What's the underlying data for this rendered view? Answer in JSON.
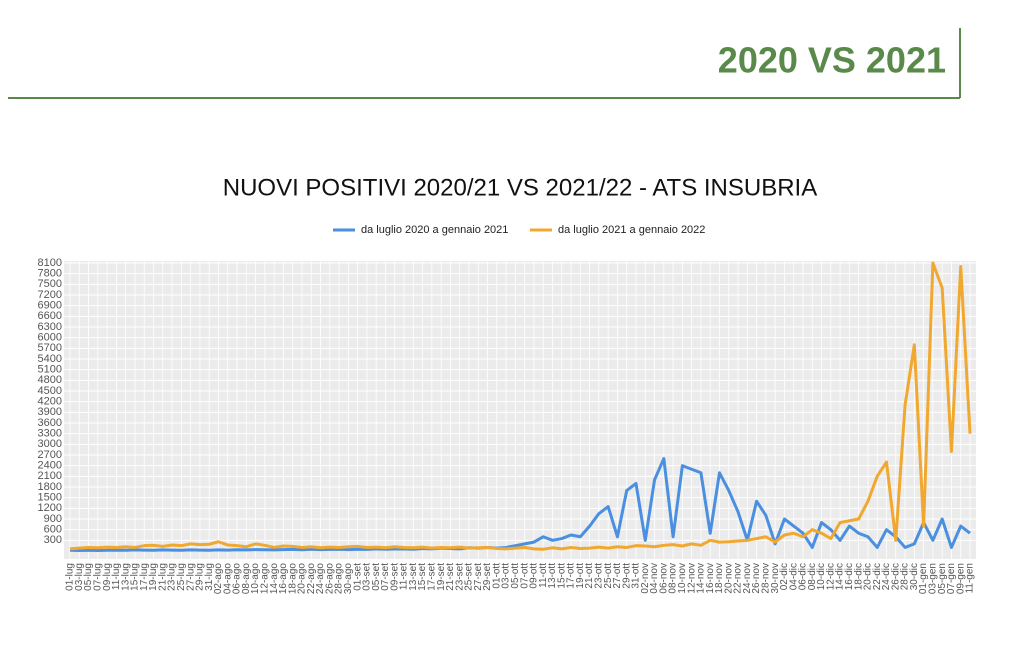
{
  "header": {
    "title": "2020 VS 2021"
  },
  "chart_data": {
    "type": "line",
    "title": "NUOVI POSITIVI 2020/21 VS 2021/22 - ATS INSUBRIA",
    "categories": [
      "01-lug",
      "03-lug",
      "05-lug",
      "07-lug",
      "09-lug",
      "11-lug",
      "13-lug",
      "15-lug",
      "17-lug",
      "19-lug",
      "21-lug",
      "23-lug",
      "25-lug",
      "27-lug",
      "29-lug",
      "31-lug",
      "02-ago",
      "04-ago",
      "06-ago",
      "08-ago",
      "10-ago",
      "12-ago",
      "14-ago",
      "16-ago",
      "18-ago",
      "20-ago",
      "22-ago",
      "24-ago",
      "26-ago",
      "28-ago",
      "30-ago",
      "01-set",
      "03-set",
      "05-set",
      "07-set",
      "09-set",
      "11-set",
      "13-set",
      "15-set",
      "17-set",
      "19-set",
      "21-set",
      "23-set",
      "25-set",
      "27-set",
      "29-set",
      "01-ott",
      "03-ott",
      "05-ott",
      "07-ott",
      "09-ott",
      "11-ott",
      "13-ott",
      "15-ott",
      "17-ott",
      "19-ott",
      "21-ott",
      "23-ott",
      "25-ott",
      "27-ott",
      "29-ott",
      "31-ott",
      "02-nov",
      "04-nov",
      "06-nov",
      "08-nov",
      "10-nov",
      "12-nov",
      "14-nov",
      "16-nov",
      "18-nov",
      "20-nov",
      "22-nov",
      "24-nov",
      "26-nov",
      "28-nov",
      "30-nov",
      "02-dic",
      "04-dic",
      "06-dic",
      "08-dic",
      "10-dic",
      "12-dic",
      "14-dic",
      "16-dic",
      "18-dic",
      "20-dic",
      "22-dic",
      "24-dic",
      "26-dic",
      "28-dic",
      "30-dic",
      "01-gen",
      "03-gen",
      "05-gen",
      "07-gen",
      "09-gen",
      "11-gen"
    ],
    "series": [
      {
        "name": "da luglio 2020 a gennaio 2021",
        "color": "#4a8fe0",
        "values": [
          20,
          15,
          20,
          15,
          20,
          25,
          20,
          30,
          25,
          20,
          30,
          25,
          20,
          30,
          25,
          20,
          30,
          25,
          35,
          30,
          40,
          35,
          30,
          40,
          45,
          35,
          50,
          40,
          45,
          50,
          40,
          50,
          45,
          60,
          50,
          55,
          60,
          50,
          70,
          60,
          80,
          70,
          60,
          90,
          80,
          100,
          80,
          100,
          150,
          200,
          250,
          400,
          300,
          350,
          450,
          400,
          700,
          1050,
          1250,
          400,
          1700,
          1900,
          300,
          2000,
          2600,
          400,
          2400,
          2300,
          2200,
          500,
          2200,
          1700,
          1100,
          300,
          1400,
          1000,
          200,
          900,
          700,
          500,
          100,
          800,
          600,
          300,
          700,
          500,
          400,
          100,
          600,
          400,
          100,
          200,
          800,
          300,
          900,
          100,
          700,
          500
        ]
      },
      {
        "name": "da luglio 2021 a gennaio 2022",
        "color": "#f0a830",
        "values": [
          60,
          80,
          100,
          90,
          110,
          100,
          120,
          100,
          150,
          160,
          130,
          170,
          150,
          200,
          180,
          190,
          260,
          170,
          150,
          120,
          200,
          160,
          100,
          140,
          130,
          100,
          120,
          90,
          110,
          100,
          120,
          130,
          100,
          110,
          90,
          120,
          100,
          90,
          110,
          80,
          100,
          90,
          110,
          80,
          90,
          100,
          70,
          60,
          80,
          100,
          60,
          50,
          90,
          60,
          100,
          70,
          80,
          110,
          80,
          120,
          100,
          150,
          140,
          120,
          160,
          180,
          140,
          200,
          160,
          300,
          250,
          260,
          280,
          300,
          350,
          400,
          250,
          450,
          500,
          400,
          600,
          500,
          350,
          800,
          850,
          900,
          1400,
          2100,
          2500,
          300,
          4100,
          5800,
          700,
          8100,
          7400,
          2800,
          8000,
          3300
        ]
      }
    ],
    "ylim": [
      0,
      8100
    ],
    "yticks": [
      300,
      600,
      900,
      1200,
      1500,
      1800,
      2100,
      2400,
      2700,
      3000,
      3300,
      3600,
      3900,
      4200,
      4500,
      4800,
      5100,
      5400,
      5700,
      6000,
      6300,
      6600,
      6900,
      7200,
      7500,
      7800,
      8100
    ],
    "grid": true,
    "legend": "top"
  }
}
